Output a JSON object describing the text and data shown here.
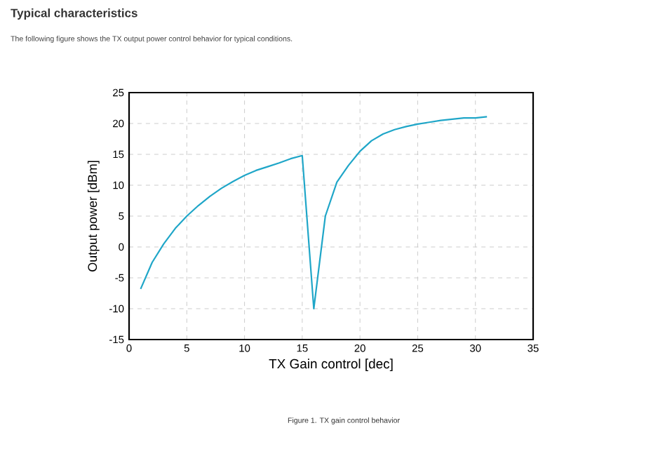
{
  "chart_data": {
    "type": "line",
    "title": "Typical characteristics",
    "subtitle": "The following figure shows the TX output power control behavior for typical conditions.",
    "xlabel": "TX Gain control [dec]",
    "ylabel": "Output power  [dBm]",
    "x": [
      1,
      2,
      3,
      4,
      5,
      6,
      7,
      8,
      9,
      10,
      11,
      12,
      13,
      14,
      15,
      16,
      17,
      18,
      19,
      20,
      21,
      22,
      23,
      24,
      25,
      26,
      27,
      28,
      29,
      30,
      31
    ],
    "series": [
      {
        "color": "#1fa6c8",
        "values": [
          -6.8,
          -2.5,
          0.5,
          3,
          5,
          6.7,
          8.2,
          9.5,
          10.6,
          11.6,
          12.4,
          13,
          13.6,
          14.3,
          14.8,
          -10,
          5,
          10.5,
          13.2,
          15.5,
          17.2,
          18.3,
          19,
          19.5,
          19.9,
          20.2,
          20.5,
          20.7,
          20.9,
          20.9,
          21.1
        ]
      }
    ],
    "xlim": [
      0,
      35
    ],
    "ylim": [
      -15,
      25
    ],
    "xticks": [
      0,
      5,
      10,
      15,
      20,
      25,
      30,
      35
    ],
    "yticks": [
      -15,
      -10,
      -5,
      0,
      5,
      10,
      15,
      20,
      25
    ],
    "grid": true,
    "marker": "none",
    "line_style": "solid",
    "annotations": [
      "Figure 1. TX gain control behavior"
    ]
  }
}
